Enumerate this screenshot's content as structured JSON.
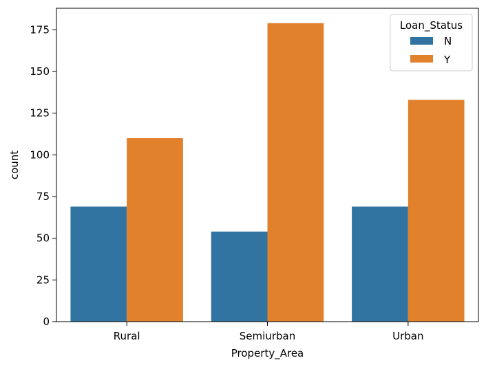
{
  "chart_data": {
    "type": "bar",
    "categories": [
      "Rural",
      "Semiurban",
      "Urban"
    ],
    "series": [
      {
        "name": "N",
        "color": "#3274a1",
        "values": [
          69,
          54,
          69
        ]
      },
      {
        "name": "Y",
        "color": "#e1812c",
        "values": [
          110,
          179,
          133
        ]
      }
    ],
    "xlabel": "Property_Area",
    "ylabel": "count",
    "ylim": [
      0,
      187.9
    ],
    "yticks": [
      0,
      25,
      50,
      75,
      100,
      125,
      150,
      175
    ],
    "grid": false,
    "legend": {
      "title": "Loan_Status",
      "placement": "top-right"
    }
  }
}
